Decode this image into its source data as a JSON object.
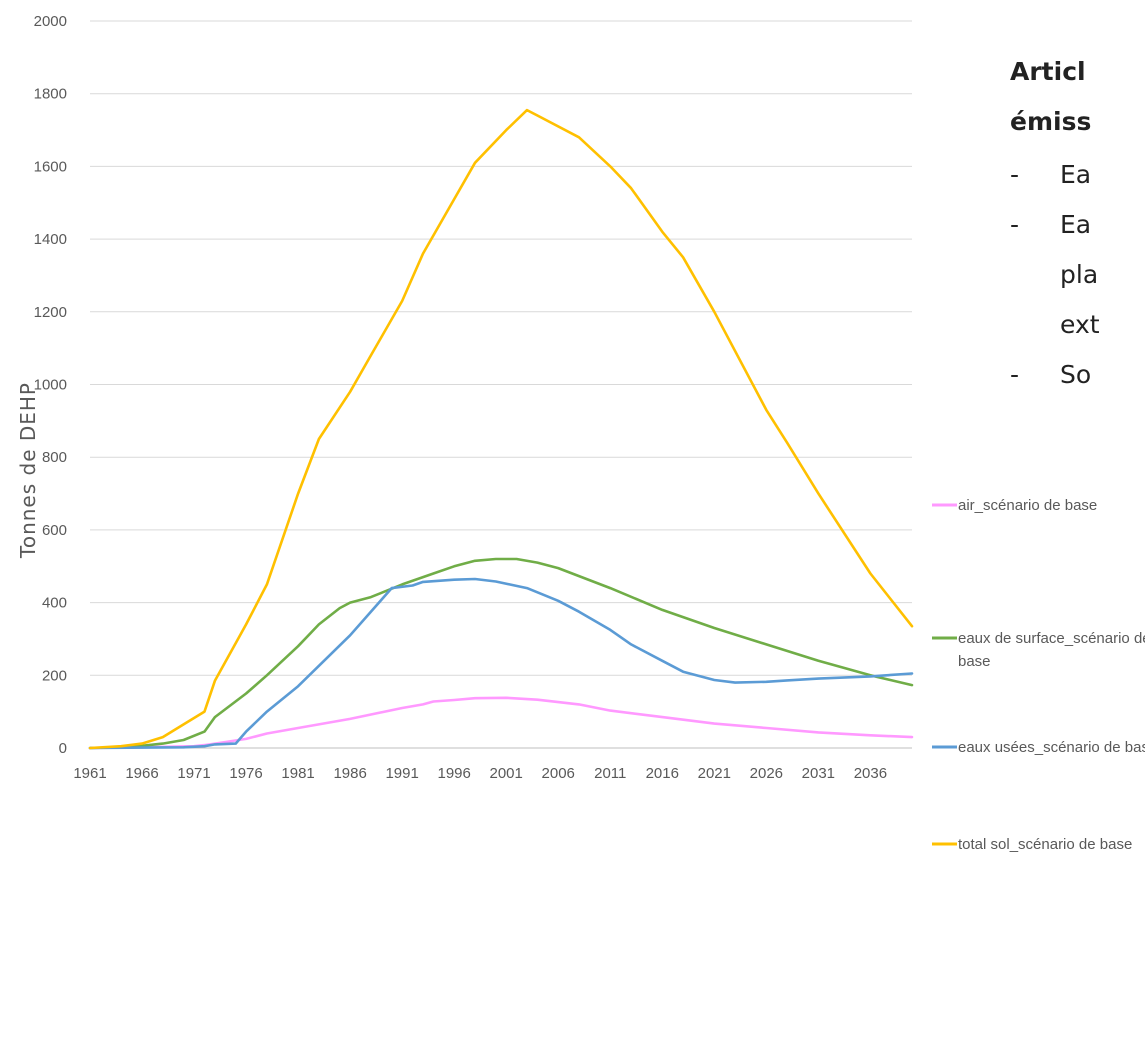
{
  "side_text": {
    "heading_lines": [
      "Articl",
      "émiss"
    ],
    "bullets": [
      {
        "dash": "-",
        "lines": [
          "Ea"
        ]
      },
      {
        "dash": "-",
        "lines": [
          "Ea",
          "pla",
          "ext"
        ]
      },
      {
        "dash": "-",
        "lines": [
          "So"
        ]
      }
    ]
  },
  "chart_data": {
    "type": "line",
    "title": "",
    "xlabel": "",
    "ylabel": "Tonnes de DEHP",
    "ylim": [
      0,
      2000
    ],
    "yticks": [
      "0",
      "200",
      "400",
      "600",
      "800",
      "1000",
      "1200",
      "1400",
      "1600",
      "1800",
      "2000"
    ],
    "xlim": [
      1961,
      2040
    ],
    "xticks": [
      "1961",
      "1966",
      "1971",
      "1976",
      "1981",
      "1986",
      "1991",
      "1996",
      "2001",
      "2006",
      "2011",
      "2016",
      "2021",
      "2026",
      "2031",
      "2036"
    ],
    "grid": true,
    "legend_position": "right",
    "series": [
      {
        "name": "air_scénario de base",
        "color": "#ff99ff",
        "points": [
          [
            1961,
            0
          ],
          [
            1966,
            2
          ],
          [
            1971,
            5
          ],
          [
            1972,
            8
          ],
          [
            1973,
            12
          ],
          [
            1976,
            25
          ],
          [
            1978,
            40
          ],
          [
            1981,
            55
          ],
          [
            1986,
            80
          ],
          [
            1991,
            110
          ],
          [
            1993,
            120
          ],
          [
            1994,
            128
          ],
          [
            1996,
            132
          ],
          [
            1998,
            137
          ],
          [
            2001,
            138
          ],
          [
            2004,
            133
          ],
          [
            2008,
            120
          ],
          [
            2011,
            103
          ],
          [
            2016,
            85
          ],
          [
            2021,
            67
          ],
          [
            2026,
            55
          ],
          [
            2031,
            43
          ],
          [
            2036,
            35
          ],
          [
            2040,
            30
          ]
        ]
      },
      {
        "name": "eaux de surface_scénario de base",
        "color": "#70ad47",
        "points": [
          [
            1961,
            0
          ],
          [
            1965,
            3
          ],
          [
            1968,
            12
          ],
          [
            1970,
            22
          ],
          [
            1972,
            45
          ],
          [
            1973,
            85
          ],
          [
            1976,
            150
          ],
          [
            1978,
            200
          ],
          [
            1981,
            280
          ],
          [
            1983,
            340
          ],
          [
            1985,
            385
          ],
          [
            1986,
            400
          ],
          [
            1988,
            415
          ],
          [
            1991,
            450
          ],
          [
            1994,
            480
          ],
          [
            1996,
            500
          ],
          [
            1998,
            515
          ],
          [
            2000,
            520
          ],
          [
            2002,
            520
          ],
          [
            2004,
            510
          ],
          [
            2006,
            495
          ],
          [
            2011,
            440
          ],
          [
            2016,
            380
          ],
          [
            2021,
            330
          ],
          [
            2026,
            285
          ],
          [
            2031,
            240
          ],
          [
            2036,
            200
          ],
          [
            2040,
            173
          ]
        ]
      },
      {
        "name": "eaux usées_scénario de base",
        "color": "#5b9bd5",
        "points": [
          [
            1961,
            0
          ],
          [
            1970,
            2
          ],
          [
            1972,
            5
          ],
          [
            1973,
            10
          ],
          [
            1975,
            12
          ],
          [
            1976,
            45
          ],
          [
            1978,
            100
          ],
          [
            1981,
            170
          ],
          [
            1986,
            310
          ],
          [
            1990,
            440
          ],
          [
            1992,
            447
          ],
          [
            1993,
            457
          ],
          [
            1996,
            463
          ],
          [
            1998,
            465
          ],
          [
            2000,
            458
          ],
          [
            2003,
            440
          ],
          [
            2006,
            405
          ],
          [
            2008,
            375
          ],
          [
            2011,
            325
          ],
          [
            2013,
            285
          ],
          [
            2016,
            240
          ],
          [
            2018,
            210
          ],
          [
            2021,
            187
          ],
          [
            2023,
            180
          ],
          [
            2026,
            182
          ],
          [
            2028,
            186
          ],
          [
            2031,
            191
          ],
          [
            2036,
            197
          ],
          [
            2040,
            205
          ]
        ]
      },
      {
        "name": "total sol_scénario de base",
        "color": "#ffc000",
        "points": [
          [
            1961,
            0
          ],
          [
            1964,
            5
          ],
          [
            1966,
            12
          ],
          [
            1968,
            30
          ],
          [
            1970,
            65
          ],
          [
            1972,
            100
          ],
          [
            1973,
            185
          ],
          [
            1976,
            340
          ],
          [
            1978,
            450
          ],
          [
            1981,
            700
          ],
          [
            1983,
            850
          ],
          [
            1986,
            980
          ],
          [
            1988,
            1080
          ],
          [
            1991,
            1230
          ],
          [
            1993,
            1360
          ],
          [
            1996,
            1510
          ],
          [
            1998,
            1610
          ],
          [
            2001,
            1700
          ],
          [
            2003,
            1755
          ],
          [
            2004,
            1740
          ],
          [
            2008,
            1680
          ],
          [
            2011,
            1600
          ],
          [
            2013,
            1540
          ],
          [
            2016,
            1420
          ],
          [
            2018,
            1350
          ],
          [
            2021,
            1200
          ],
          [
            2026,
            930
          ],
          [
            2028,
            840
          ],
          [
            2031,
            700
          ],
          [
            2036,
            480
          ],
          [
            2040,
            335
          ]
        ]
      }
    ]
  }
}
